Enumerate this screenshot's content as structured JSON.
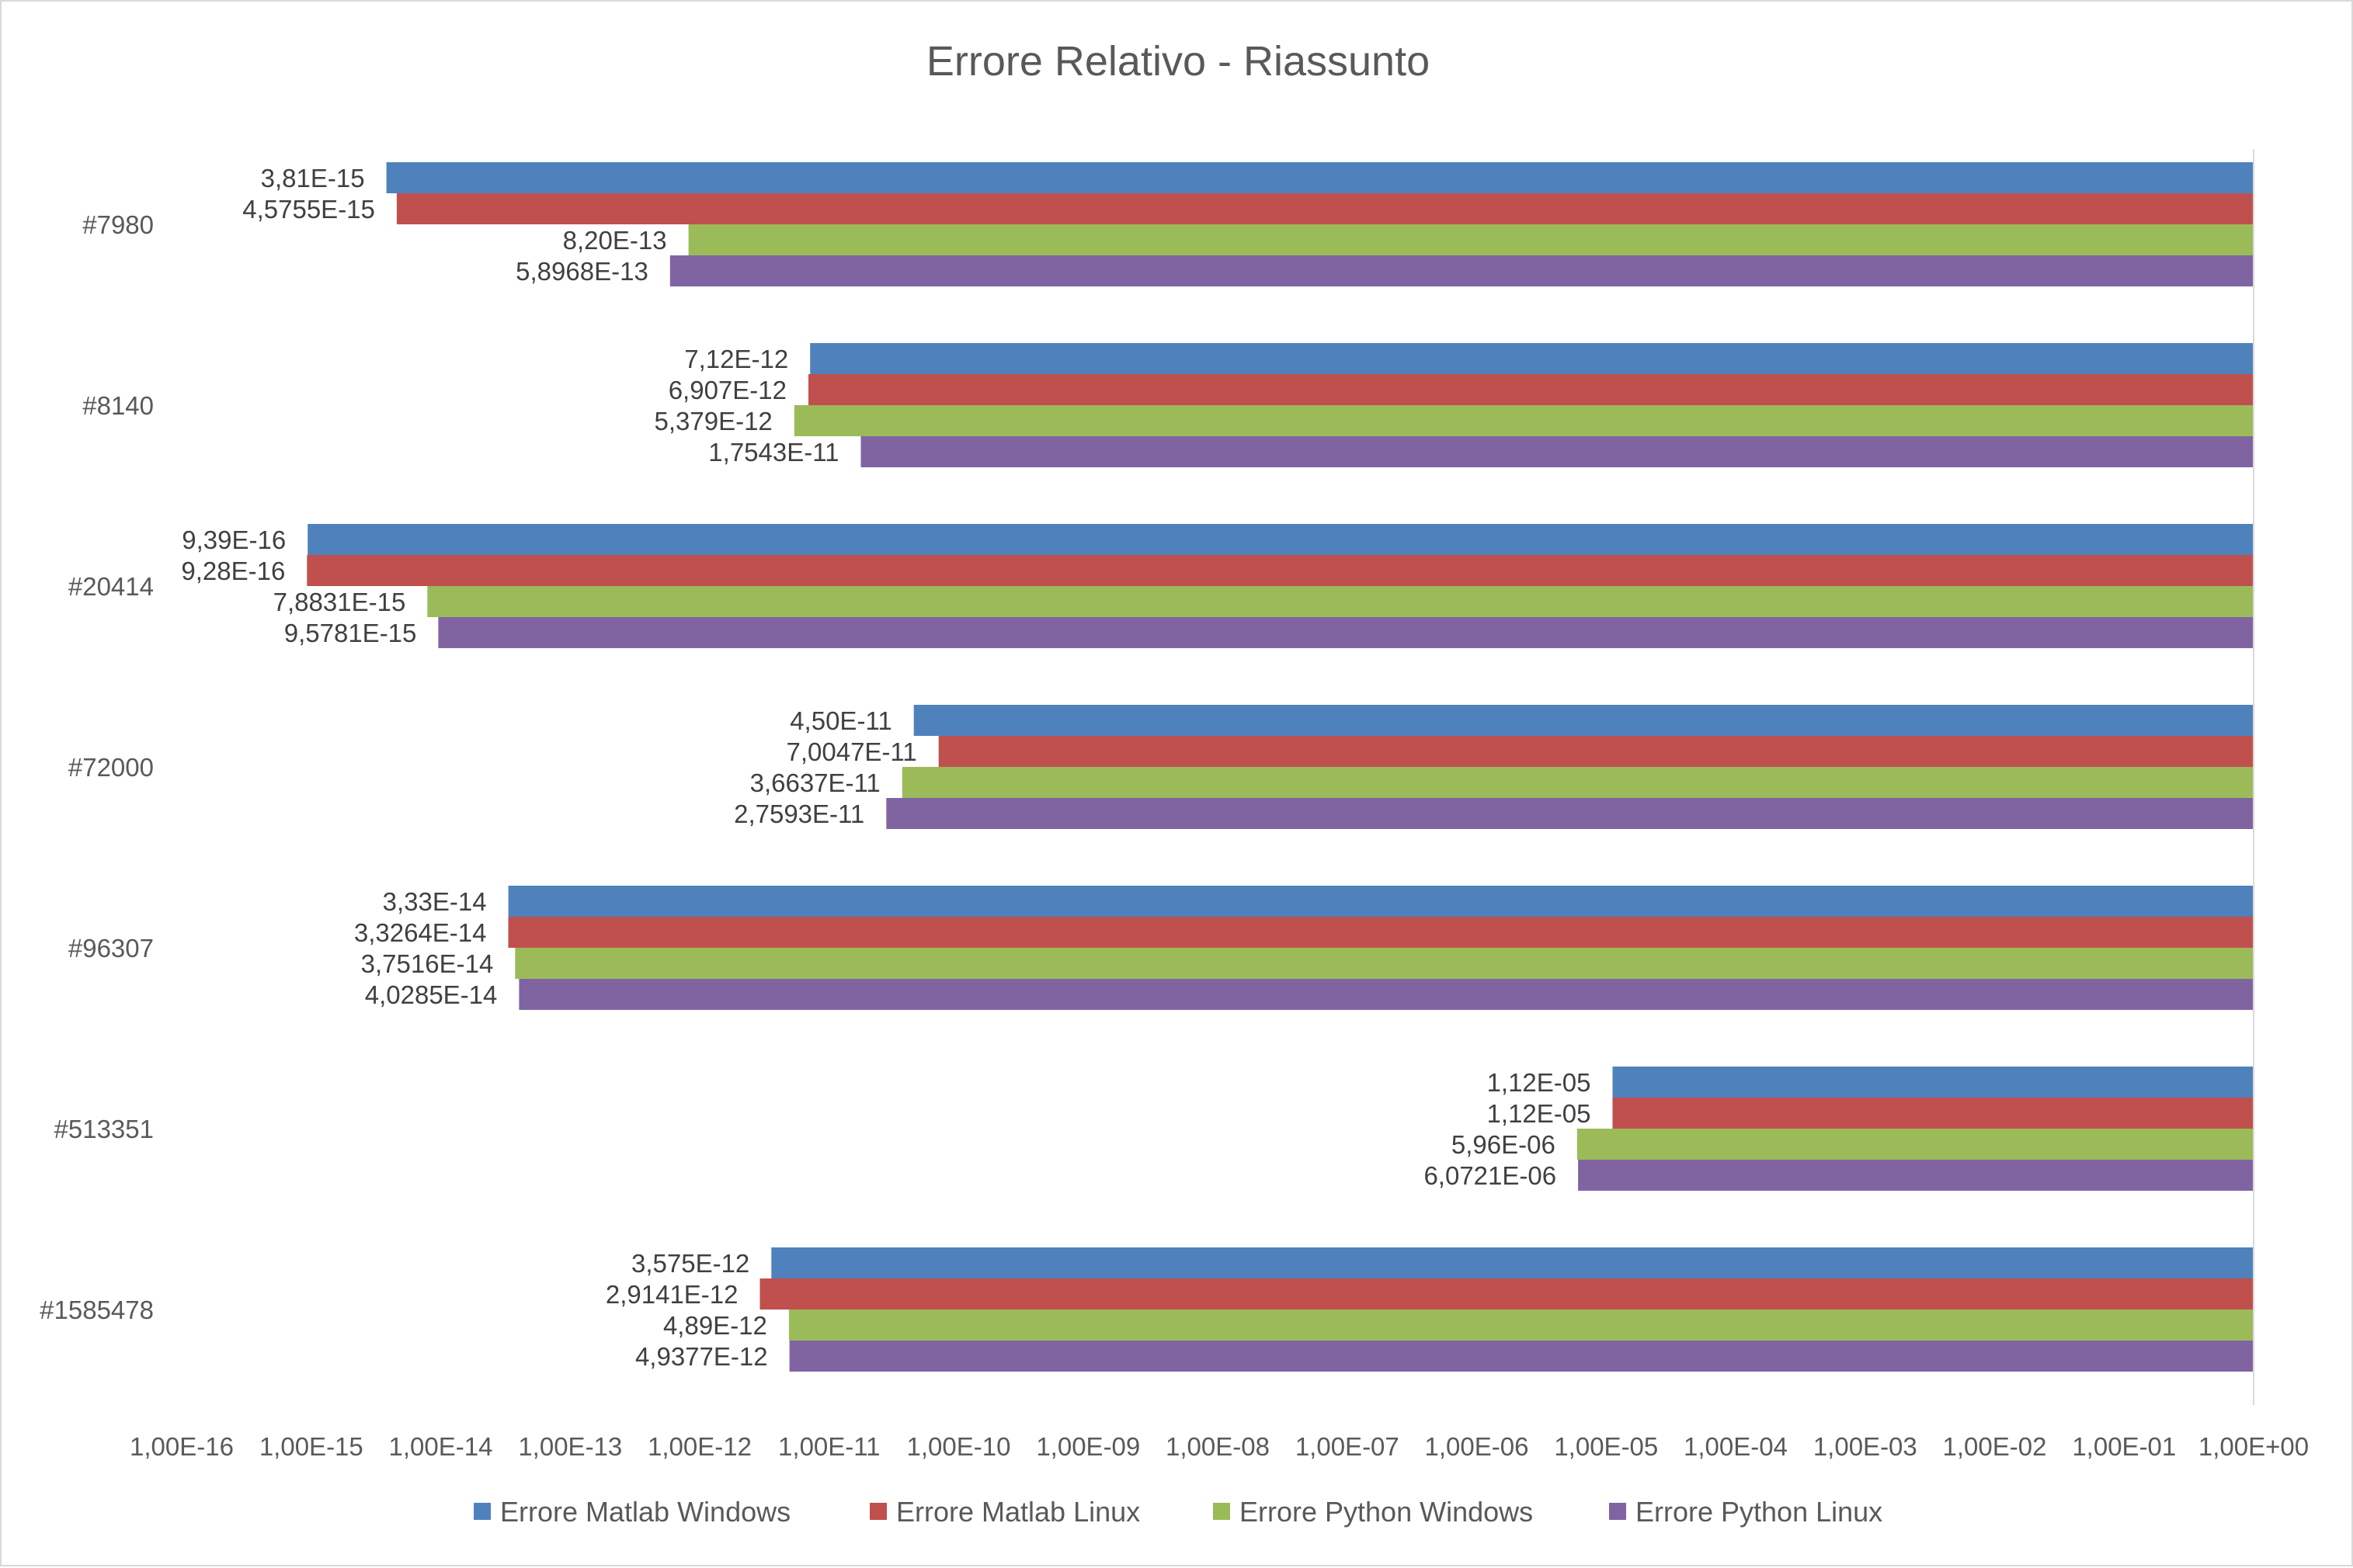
{
  "chart_data": {
    "type": "bar",
    "orientation": "horizontal",
    "title": "Errore Relativo - Riassunto",
    "x_scale": "log",
    "xlim": [
      1e-16,
      1
    ],
    "x_tick_labels": [
      "1,00E-16",
      "1,00E-15",
      "1,00E-14",
      "1,00E-13",
      "1,00E-12",
      "1,00E-11",
      "1,00E-10",
      "1,00E-09",
      "1,00E-08",
      "1,00E-07",
      "1,00E-06",
      "1,00E-05",
      "1,00E-04",
      "1,00E-03",
      "1,00E-02",
      "1,00E-01",
      "1,00E+00"
    ],
    "categories": [
      "#7980",
      "#8140",
      "#20414",
      "#72000",
      "#96307",
      "#513351",
      "#1585478"
    ],
    "series": [
      {
        "name": "Errore Matlab Windows",
        "color": "#4F81BD",
        "values": [
          3.81e-15,
          7.12e-12,
          9.39e-16,
          4.5e-11,
          3.33e-14,
          1.12e-05,
          3.575e-12
        ],
        "labels": [
          "3,81E-15",
          "7,12E-12",
          "9,39E-16",
          "4,50E-11",
          "3,33E-14",
          "1,12E-05",
          "3,575E-12"
        ]
      },
      {
        "name": "Errore Matlab Linux",
        "color": "#C0504D",
        "values": [
          4.5755e-15,
          6.907e-12,
          9.28e-16,
          7.0047e-11,
          3.3264e-14,
          1.12e-05,
          2.9141e-12
        ],
        "labels": [
          "4,5755E-15",
          "6,907E-12",
          "9,28E-16",
          "7,0047E-11",
          "3,3264E-14",
          "1,12E-05",
          "2,9141E-12"
        ]
      },
      {
        "name": "Errore Python Windows",
        "color": "#9BBB59",
        "values": [
          8.2e-13,
          5.379e-12,
          7.8831e-15,
          3.6637e-11,
          3.7516e-14,
          5.96e-06,
          4.89e-12
        ],
        "labels": [
          "8,20E-13",
          "5,379E-12",
          "7,8831E-15",
          "3,6637E-11",
          "3,7516E-14",
          "5,96E-06",
          "4,89E-12"
        ]
      },
      {
        "name": "Errore Python Linux",
        "color": "#8064A2",
        "values": [
          5.8968e-13,
          1.7543e-11,
          9.5781e-15,
          2.7593e-11,
          4.0285e-14,
          6.0721e-06,
          4.9377e-12
        ],
        "labels": [
          "5,8968E-13",
          "1,7543E-11",
          "9,5781E-15",
          "2,7593E-11",
          "4,0285E-14",
          "6,0721E-06",
          "4,9377E-12"
        ]
      }
    ],
    "bars_extend_from": "right (1,00E+00)",
    "grid": false,
    "legend_position": "bottom"
  }
}
